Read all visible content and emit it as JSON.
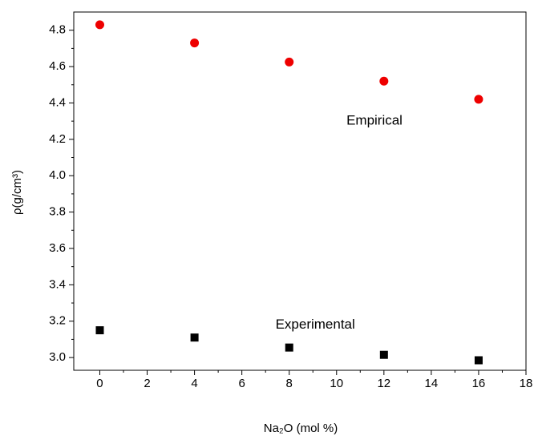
{
  "chart_data": {
    "type": "scatter",
    "x_label": "Na₂O (mol %)",
    "y_label": "ρ(g/cm³)",
    "x": [
      0,
      4,
      8,
      12,
      16
    ],
    "series": [
      {
        "name": "Empirical",
        "color": "#ee0000",
        "marker": "circle",
        "values": [
          4.83,
          4.73,
          4.625,
          4.52,
          4.42
        ],
        "label_at": [
          11.6,
          4.3
        ]
      },
      {
        "name": "Experimental",
        "color": "#000000",
        "marker": "square",
        "values": [
          3.15,
          3.11,
          3.055,
          3.015,
          2.985
        ],
        "label_at": [
          9.1,
          3.18
        ]
      }
    ],
    "xlim": [
      -1.1,
      18
    ],
    "xticks": [
      0,
      2,
      4,
      6,
      8,
      10,
      12,
      14,
      16,
      18
    ],
    "ylim": [
      2.93,
      4.9
    ],
    "yticks": [
      {
        "value": 3,
        "label": "3.0"
      },
      3.2,
      3.4,
      3.6,
      3.8,
      {
        "value": 4,
        "label": "4.0"
      },
      4.2,
      4.4,
      4.6,
      4.8
    ]
  }
}
